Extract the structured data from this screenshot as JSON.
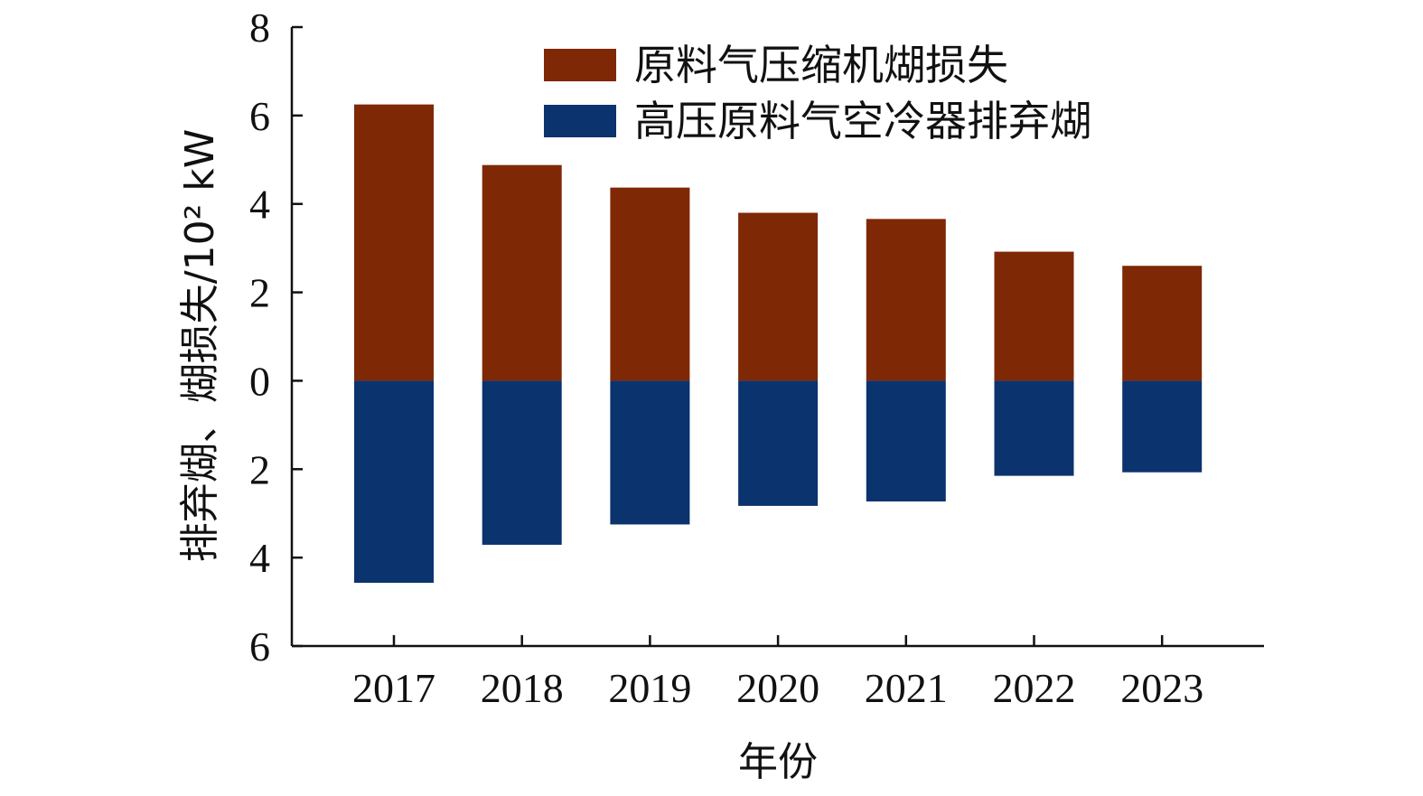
{
  "chart_data": {
    "type": "bar",
    "categories": [
      "2017",
      "2018",
      "2019",
      "2020",
      "2021",
      "2022",
      "2023"
    ],
    "series": [
      {
        "name": "原料气压缩机煳损失",
        "direction": "up",
        "color": "#7F2805",
        "values": [
          6.25,
          4.88,
          4.37,
          3.8,
          3.66,
          2.92,
          2.6
        ]
      },
      {
        "name": "高压原料气空冷器排弃煳",
        "direction": "down",
        "color": "#0B336E",
        "values": [
          4.57,
          3.71,
          3.25,
          2.83,
          2.73,
          2.15,
          2.07
        ]
      }
    ],
    "xlabel": "年份",
    "ylabel": "排弃煳、煳损失/10² kW",
    "ylim": [
      -6,
      8
    ],
    "yticks": [
      {
        "value": 8,
        "label": "8"
      },
      {
        "value": 6,
        "label": "6"
      },
      {
        "value": 4,
        "label": "4"
      },
      {
        "value": 2,
        "label": "2"
      },
      {
        "value": 0,
        "label": "0"
      },
      {
        "value": -2,
        "label": "2"
      },
      {
        "value": -4,
        "label": "4"
      },
      {
        "value": -6,
        "label": "6"
      }
    ],
    "legend": "top-right",
    "grid": false
  }
}
